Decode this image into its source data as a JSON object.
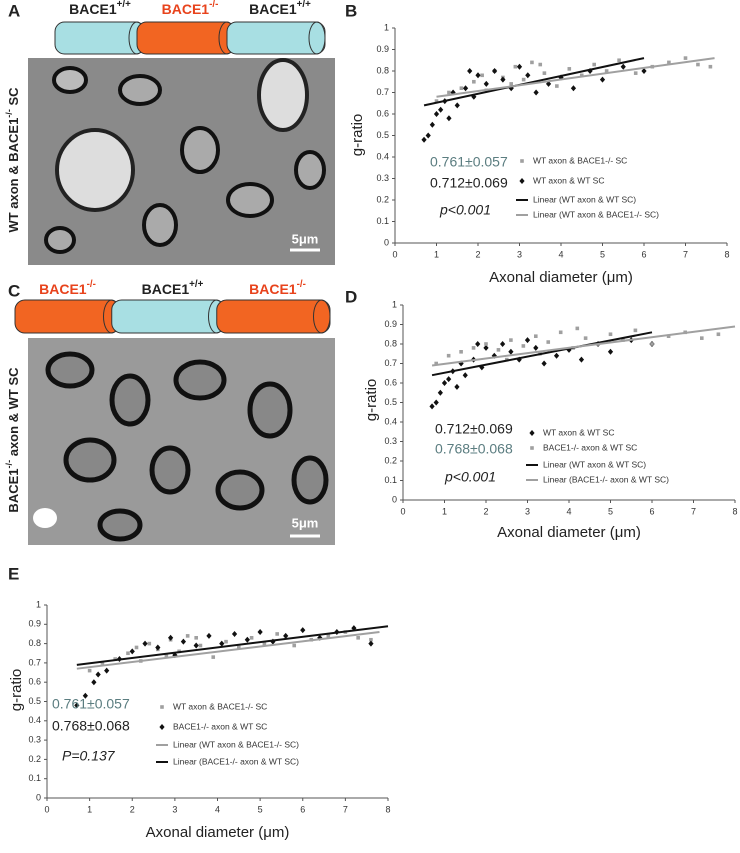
{
  "panels": {
    "A": {
      "letter": "A",
      "diagram": [
        {
          "text": "BACE1",
          "sup": "+/+",
          "fill": "#a8dfe3",
          "text_color": "#222"
        },
        {
          "text": "BACE1",
          "sup": "-/-",
          "fill": "#f26522",
          "text_color": "#e8431c"
        },
        {
          "text": "BACE1",
          "sup": "+/+",
          "fill": "#a8dfe3",
          "text_color": "#222"
        }
      ],
      "side_label": {
        "text": "WT axon & BACE1",
        "sup": "-/-",
        "rest": " SC"
      },
      "scale": "5μm"
    },
    "B": {
      "letter": "B"
    },
    "C": {
      "letter": "C",
      "diagram": [
        {
          "text": "BACE1",
          "sup": "-/-",
          "fill": "#f26522",
          "text_color": "#e8431c"
        },
        {
          "text": "BACE1",
          "sup": "+/+",
          "fill": "#a8dfe3",
          "text_color": "#222"
        },
        {
          "text": "BACE1",
          "sup": "-/-",
          "fill": "#f26522",
          "text_color": "#e8431c"
        }
      ],
      "side_label": {
        "text": "BACE1",
        "sup": "-/-",
        "rest": " axon & WT SC"
      },
      "scale": "5μm"
    },
    "D": {
      "letter": "D"
    },
    "E": {
      "letter": "E"
    }
  },
  "chart_data": [
    {
      "type": "scatter",
      "xlabel": "Axonal diameter (μm)",
      "ylabel": "g-ratio",
      "xlim": [
        0,
        8
      ],
      "xticks": [
        0,
        1,
        2,
        3,
        4,
        5,
        6,
        7,
        8
      ],
      "ylim": [
        0,
        1
      ],
      "yticks": [
        0,
        0.1,
        0.2,
        0.3,
        0.4,
        0.5,
        0.6,
        0.7,
        0.8,
        0.9,
        1
      ],
      "annotations": [
        {
          "text": "0.761±0.057",
          "color": "#5b7d80",
          "italic": false
        },
        {
          "text": "0.712±0.069",
          "color": "#222",
          "italic": false
        },
        {
          "text": "p<0.001",
          "color": "#222",
          "italic": true
        }
      ],
      "series": [
        {
          "name": "WT axon & BACE1-/- SC",
          "color": "#a0a0a0",
          "marker": "square",
          "x": [
            1.0,
            1.3,
            1.6,
            1.9,
            2.1,
            2.4,
            2.6,
            2.9,
            3.1,
            3.3,
            3.6,
            3.9,
            4.2,
            4.5,
            4.8,
            5.1,
            5.4,
            5.8,
            6.2,
            6.6,
            7.0,
            7.3,
            7.6,
            2.2,
            2.8,
            3.5
          ],
          "values": [
            0.66,
            0.7,
            0.72,
            0.75,
            0.78,
            0.8,
            0.77,
            0.82,
            0.76,
            0.84,
            0.79,
            0.73,
            0.81,
            0.78,
            0.83,
            0.8,
            0.85,
            0.79,
            0.82,
            0.84,
            0.86,
            0.83,
            0.82,
            0.71,
            0.74,
            0.83
          ]
        },
        {
          "name": "WT axon & WT SC",
          "color": "#111",
          "marker": "diamond",
          "x": [
            0.7,
            0.8,
            0.9,
            1.0,
            1.1,
            1.2,
            1.4,
            1.5,
            1.7,
            1.9,
            2.0,
            2.2,
            2.4,
            2.6,
            2.8,
            3.0,
            3.2,
            3.4,
            3.7,
            4.0,
            4.3,
            4.7,
            5.0,
            5.5,
            6.0,
            1.3,
            1.8
          ],
          "values": [
            0.48,
            0.5,
            0.55,
            0.6,
            0.62,
            0.66,
            0.7,
            0.64,
            0.72,
            0.68,
            0.78,
            0.74,
            0.8,
            0.76,
            0.72,
            0.82,
            0.78,
            0.7,
            0.74,
            0.77,
            0.72,
            0.8,
            0.76,
            0.82,
            0.8,
            0.58,
            0.8
          ]
        },
        {
          "name": "Linear (WT axon & WT SC)",
          "color": "#111",
          "marker": "line",
          "x": [
            0.7,
            6.0
          ],
          "values": [
            0.64,
            0.86
          ]
        },
        {
          "name": "Linear (WT axon & BACE1-/- SC)",
          "color": "#a0a0a0",
          "marker": "line",
          "x": [
            1.0,
            7.7
          ],
          "values": [
            0.68,
            0.86
          ]
        }
      ]
    },
    {
      "type": "scatter",
      "xlabel": "Axonal diameter (μm)",
      "ylabel": "g-ratio",
      "xlim": [
        0,
        8
      ],
      "xticks": [
        0,
        1,
        2,
        3,
        4,
        5,
        6,
        7,
        8
      ],
      "ylim": [
        0,
        1
      ],
      "yticks": [
        0,
        0.1,
        0.2,
        0.3,
        0.4,
        0.5,
        0.6,
        0.7,
        0.8,
        0.9,
        1
      ],
      "annotations": [
        {
          "text": "0.712±0.069",
          "color": "#222",
          "italic": false
        },
        {
          "text": "0.768±0.068",
          "color": "#5b7d80",
          "italic": false
        },
        {
          "text": "p<0.001",
          "color": "#222",
          "italic": true
        }
      ],
      "series": [
        {
          "name": "WT axon & WT SC",
          "color": "#111",
          "marker": "diamond",
          "x": [
            0.7,
            0.8,
            0.9,
            1.0,
            1.1,
            1.2,
            1.4,
            1.5,
            1.7,
            1.9,
            2.0,
            2.2,
            2.4,
            2.6,
            2.8,
            3.0,
            3.2,
            3.4,
            3.7,
            4.0,
            4.3,
            4.7,
            5.0,
            5.5,
            6.0,
            1.3,
            1.8
          ],
          "values": [
            0.48,
            0.5,
            0.55,
            0.6,
            0.62,
            0.66,
            0.7,
            0.64,
            0.72,
            0.68,
            0.78,
            0.74,
            0.8,
            0.76,
            0.72,
            0.82,
            0.78,
            0.7,
            0.74,
            0.77,
            0.72,
            0.8,
            0.76,
            0.82,
            0.8,
            0.58,
            0.8
          ]
        },
        {
          "name": "BACE1-/- axon & WT SC",
          "color": "#a0a0a0",
          "marker": "square",
          "x": [
            0.8,
            1.1,
            1.4,
            1.7,
            2.0,
            2.3,
            2.6,
            2.9,
            3.2,
            3.5,
            3.8,
            4.1,
            4.4,
            4.7,
            5.0,
            5.3,
            5.6,
            6.0,
            6.4,
            6.8,
            7.2,
            7.6,
            2.5,
            3.3,
            4.2
          ],
          "values": [
            0.7,
            0.74,
            0.76,
            0.78,
            0.8,
            0.77,
            0.82,
            0.79,
            0.84,
            0.81,
            0.86,
            0.78,
            0.83,
            0.8,
            0.85,
            0.82,
            0.87,
            0.8,
            0.84,
            0.86,
            0.83,
            0.85,
            0.72,
            0.75,
            0.88
          ]
        },
        {
          "name": "Linear (WT axon & WT SC)",
          "color": "#111",
          "marker": "line",
          "x": [
            0.7,
            6.0
          ],
          "values": [
            0.64,
            0.86
          ]
        },
        {
          "name": "Linear (BACE1-/- axon & WT SC)",
          "color": "#a0a0a0",
          "marker": "line",
          "x": [
            0.7,
            8.0
          ],
          "values": [
            0.69,
            0.89
          ]
        }
      ]
    },
    {
      "type": "scatter",
      "xlabel": "Axonal diameter (μm)",
      "ylabel": "g-ratio",
      "xlim": [
        0,
        8
      ],
      "xticks": [
        0,
        1,
        2,
        3,
        4,
        5,
        6,
        7,
        8
      ],
      "ylim": [
        0,
        1
      ],
      "yticks": [
        0,
        0.1,
        0.2,
        0.3,
        0.4,
        0.5,
        0.6,
        0.7,
        0.8,
        0.9,
        1
      ],
      "annotations": [
        {
          "text": "0.761±0.057",
          "color": "#5b7d80",
          "italic": false
        },
        {
          "text": "0.768±0.068",
          "color": "#222",
          "italic": false
        },
        {
          "text": "P=0.137",
          "color": "#222",
          "italic": true
        }
      ],
      "series": [
        {
          "name": "WT axon & BACE1-/- SC",
          "color": "#a0a0a0",
          "marker": "square",
          "x": [
            1.0,
            1.3,
            1.6,
            1.9,
            2.1,
            2.4,
            2.6,
            2.9,
            3.1,
            3.3,
            3.6,
            3.9,
            4.2,
            4.5,
            4.8,
            5.1,
            5.4,
            5.8,
            6.2,
            6.6,
            7.0,
            7.3,
            7.6,
            2.2,
            2.8,
            3.5
          ],
          "values": [
            0.66,
            0.7,
            0.72,
            0.75,
            0.78,
            0.8,
            0.77,
            0.82,
            0.76,
            0.84,
            0.79,
            0.73,
            0.81,
            0.78,
            0.83,
            0.8,
            0.85,
            0.79,
            0.82,
            0.84,
            0.86,
            0.83,
            0.82,
            0.71,
            0.74,
            0.83
          ]
        },
        {
          "name": "BACE1-/- axon & WT SC",
          "color": "#111",
          "marker": "diamond",
          "x": [
            0.7,
            0.9,
            1.1,
            1.4,
            1.7,
            2.0,
            2.3,
            2.6,
            2.9,
            3.2,
            3.5,
            3.8,
            4.1,
            4.4,
            4.7,
            5.0,
            5.3,
            5.6,
            6.0,
            6.4,
            6.8,
            7.2,
            7.6,
            1.2,
            3.0
          ],
          "values": [
            0.48,
            0.53,
            0.6,
            0.66,
            0.72,
            0.76,
            0.8,
            0.78,
            0.83,
            0.81,
            0.79,
            0.84,
            0.8,
            0.85,
            0.82,
            0.86,
            0.81,
            0.84,
            0.87,
            0.83,
            0.86,
            0.88,
            0.8,
            0.64,
            0.74
          ]
        },
        {
          "name": "Linear (WT axon & BACE1-/- SC)",
          "color": "#a0a0a0",
          "marker": "line",
          "x": [
            0.7,
            7.8
          ],
          "values": [
            0.67,
            0.86
          ]
        },
        {
          "name": "Linear (BACE1-/- axon & WT SC)",
          "color": "#111",
          "marker": "line",
          "x": [
            0.7,
            8.0
          ],
          "values": [
            0.69,
            0.89
          ]
        }
      ]
    }
  ]
}
